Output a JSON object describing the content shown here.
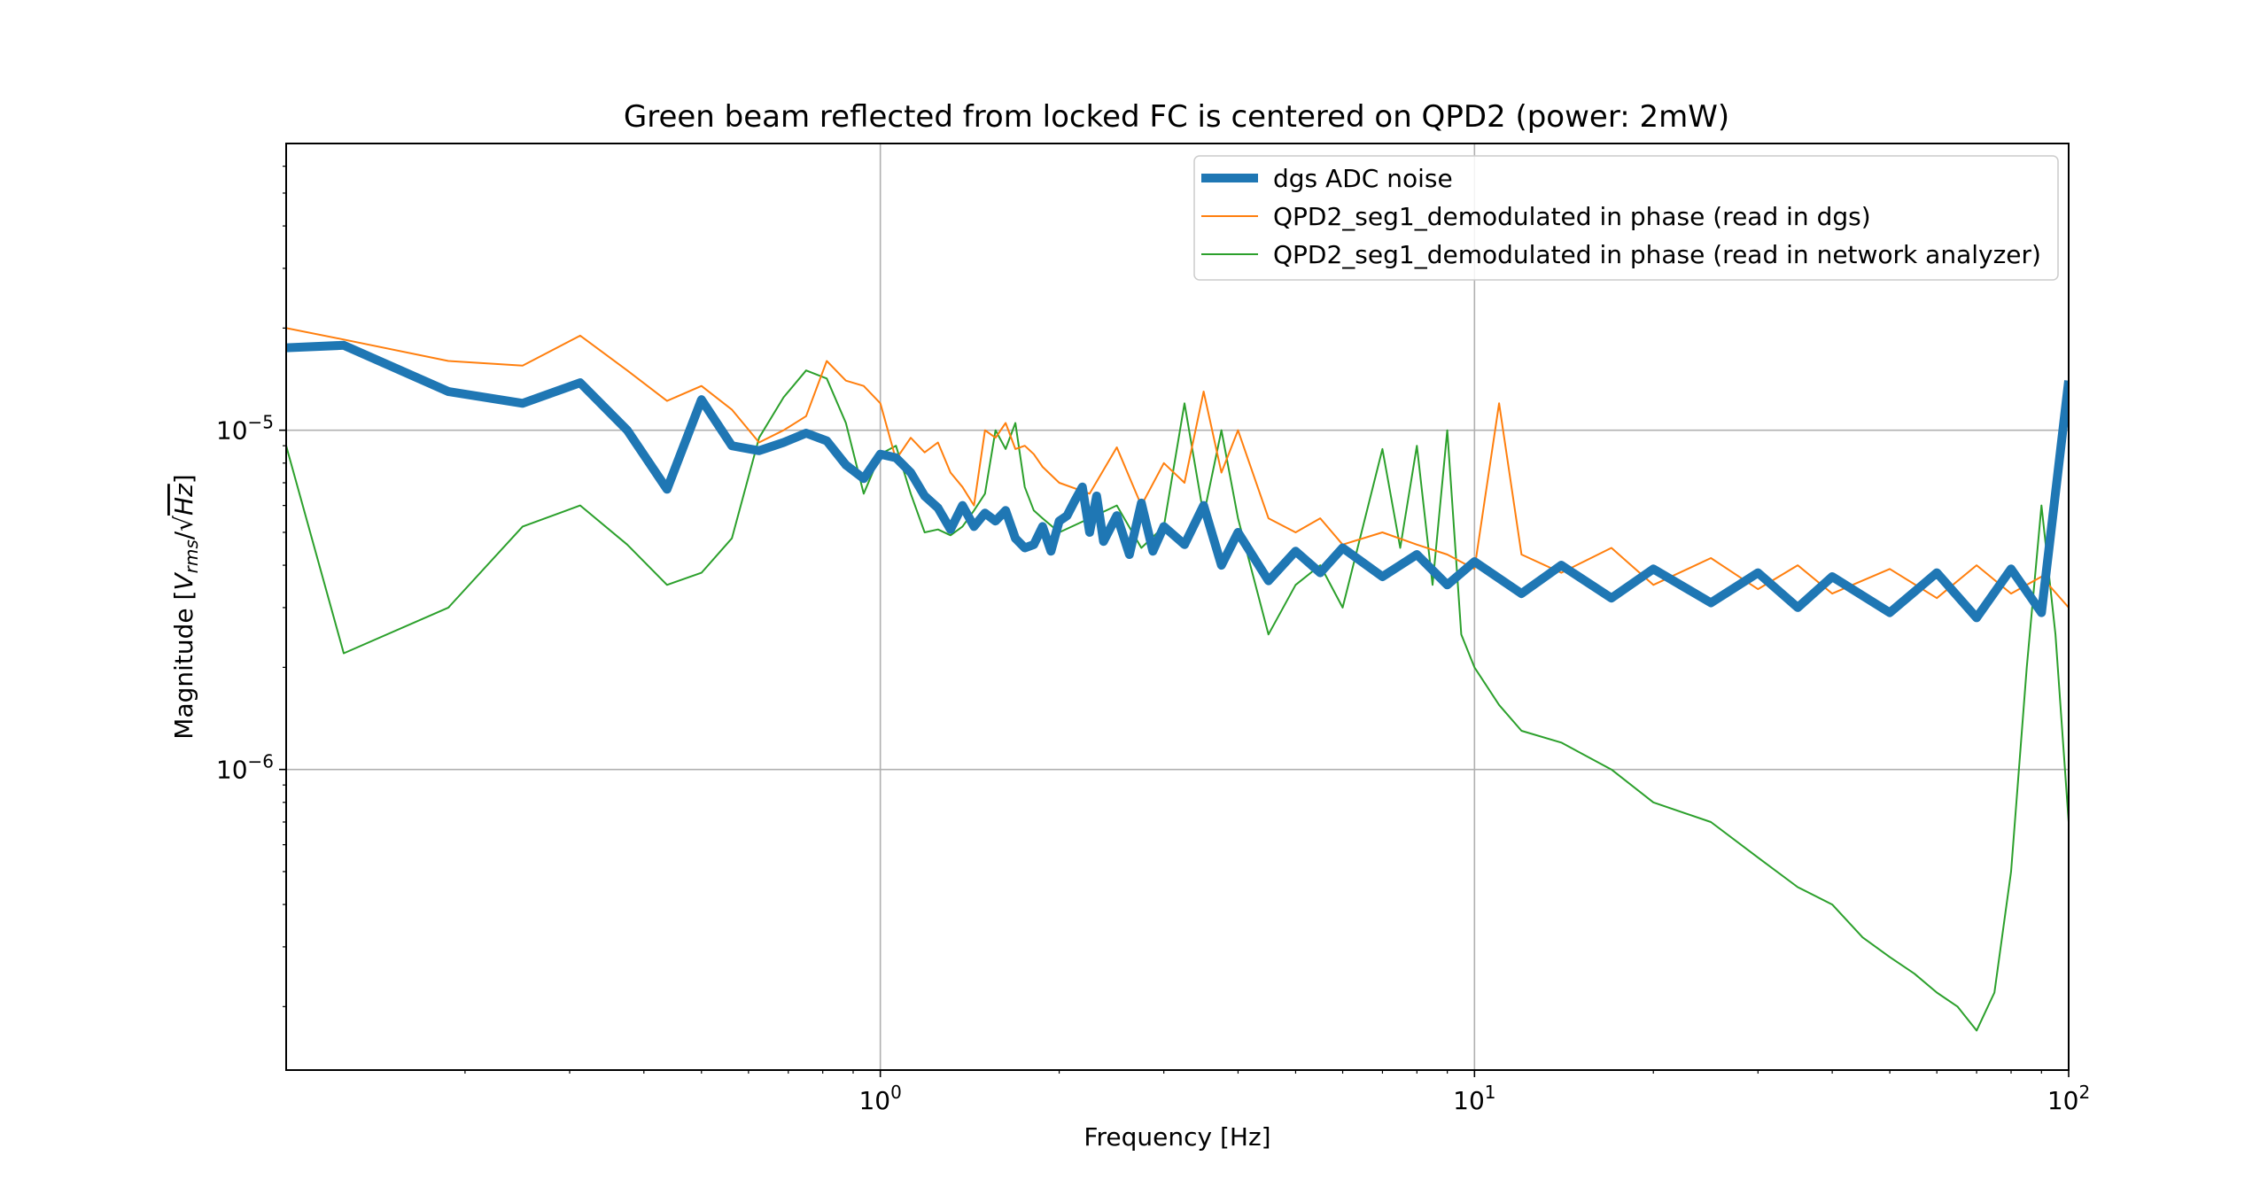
{
  "chart_data": {
    "type": "line",
    "title": "Green beam reflected from locked FC is centered on QPD2 (power: 2mW)",
    "xlabel": "Frequency [Hz]",
    "ylabel": {
      "prefix": "Magnitude [",
      "v": "V",
      "v_sub": "rms",
      "slash": "/",
      "sqrt": "√",
      "hz": "Hz",
      "suffix": "]"
    },
    "xscale": "log",
    "yscale": "log",
    "xlim": [
      0.1,
      100
    ],
    "ylim": [
      1.3e-07,
      7e-05
    ],
    "x_ticks": [
      {
        "value": 1,
        "base": "10",
        "exp": "0"
      },
      {
        "value": 10,
        "base": "10",
        "exp": "1"
      },
      {
        "value": 100,
        "base": "10",
        "exp": "2"
      }
    ],
    "y_ticks": [
      {
        "value": 1e-05,
        "base": "10",
        "exp": "−5"
      },
      {
        "value": 1e-06,
        "base": "10",
        "exp": "−6"
      }
    ],
    "grid": true,
    "legend_position": "upper right",
    "series": [
      {
        "name": "dgs ADC noise",
        "color": "#1f77b4",
        "linewidth": "thick",
        "x": [
          0.1,
          0.125,
          0.1875,
          0.25,
          0.3125,
          0.375,
          0.4375,
          0.5,
          0.5625,
          0.625,
          0.6875,
          0.75,
          0.8125,
          0.875,
          0.9375,
          1.0,
          1.0625,
          1.125,
          1.1875,
          1.25,
          1.3125,
          1.375,
          1.4375,
          1.5,
          1.5625,
          1.625,
          1.6875,
          1.75,
          1.8125,
          1.875,
          1.9375,
          2.0,
          2.0625,
          2.125,
          2.1875,
          2.25,
          2.3125,
          2.375,
          2.5,
          2.625,
          2.75,
          2.875,
          3.0,
          3.25,
          3.5,
          3.75,
          4.0,
          4.5,
          5.0,
          5.5,
          6.0,
          7.0,
          8.0,
          9.0,
          10.0,
          12.0,
          14.0,
          17.0,
          20.0,
          25.0,
          30.0,
          35.0,
          40.0,
          50.0,
          60.0,
          70.0,
          80.0,
          90.0,
          100.0
        ],
        "y": [
          1.75e-05,
          1.78e-05,
          1.3e-05,
          1.2e-05,
          1.38e-05,
          1e-05,
          6.7e-06,
          1.23e-05,
          9e-06,
          8.7e-06,
          9.2e-06,
          9.8e-06,
          9.3e-06,
          7.9e-06,
          7.2e-06,
          8.5e-06,
          8.3e-06,
          7.5e-06,
          6.4e-06,
          5.9e-06,
          5.1e-06,
          6e-06,
          5.2e-06,
          5.7e-06,
          5.4e-06,
          5.8e-06,
          4.8e-06,
          4.5e-06,
          4.6e-06,
          5.2e-06,
          4.4e-06,
          5.4e-06,
          5.6e-06,
          6.2e-06,
          6.8e-06,
          5e-06,
          6.4e-06,
          4.7e-06,
          5.6e-06,
          4.3e-06,
          6.1e-06,
          4.4e-06,
          5.2e-06,
          4.6e-06,
          6e-06,
          4e-06,
          5e-06,
          3.6e-06,
          4.4e-06,
          3.8e-06,
          4.5e-06,
          3.7e-06,
          4.3e-06,
          3.5e-06,
          4.1e-06,
          3.3e-06,
          4e-06,
          3.2e-06,
          3.9e-06,
          3.1e-06,
          3.8e-06,
          3e-06,
          3.7e-06,
          2.9e-06,
          3.8e-06,
          2.8e-06,
          3.9e-06,
          2.9e-06,
          1.4e-05
        ]
      },
      {
        "name": "QPD2_seg1_demodulated in phase (read in dgs)",
        "color": "#ff7f0e",
        "linewidth": "thin",
        "x": [
          0.1,
          0.125,
          0.1875,
          0.25,
          0.3125,
          0.375,
          0.4375,
          0.5,
          0.5625,
          0.625,
          0.6875,
          0.75,
          0.8125,
          0.875,
          0.9375,
          1.0,
          1.0625,
          1.125,
          1.1875,
          1.25,
          1.3125,
          1.375,
          1.4375,
          1.5,
          1.5625,
          1.625,
          1.6875,
          1.75,
          1.8125,
          1.875,
          2.0,
          2.25,
          2.5,
          2.75,
          3.0,
          3.25,
          3.5,
          3.75,
          4.0,
          4.5,
          5.0,
          5.5,
          6.0,
          7.0,
          8.0,
          9.0,
          10.0,
          11.0,
          12.0,
          14.0,
          17.0,
          20.0,
          25.0,
          30.0,
          35.0,
          40.0,
          50.0,
          60.0,
          70.0,
          80.0,
          90.0,
          100.0
        ],
        "y": [
          2e-05,
          1.85e-05,
          1.6e-05,
          1.55e-05,
          1.9e-05,
          1.5e-05,
          1.22e-05,
          1.35e-05,
          1.15e-05,
          9.2e-06,
          1e-05,
          1.1e-05,
          1.6e-05,
          1.4e-05,
          1.35e-05,
          1.2e-05,
          8.2e-06,
          9.5e-06,
          8.6e-06,
          9.2e-06,
          7.5e-06,
          6.8e-06,
          6e-06,
          1e-05,
          9.5e-06,
          1.05e-05,
          8.8e-06,
          9e-06,
          8.5e-06,
          7.8e-06,
          7e-06,
          6.5e-06,
          8.9e-06,
          6e-06,
          8e-06,
          7e-06,
          1.3e-05,
          7.5e-06,
          1e-05,
          5.5e-06,
          5e-06,
          5.5e-06,
          4.6e-06,
          5e-06,
          4.6e-06,
          4.3e-06,
          3.9e-06,
          1.2e-05,
          4.3e-06,
          3.8e-06,
          4.5e-06,
          3.5e-06,
          4.2e-06,
          3.4e-06,
          4e-06,
          3.3e-06,
          3.9e-06,
          3.2e-06,
          4e-06,
          3.3e-06,
          3.7e-06,
          3e-06
        ]
      },
      {
        "name": "QPD2_seg1_demodulated in phase (read in network analyzer)",
        "color": "#2ca02c",
        "linewidth": "thin",
        "x": [
          0.1,
          0.125,
          0.1875,
          0.25,
          0.3125,
          0.375,
          0.4375,
          0.5,
          0.5625,
          0.625,
          0.6875,
          0.75,
          0.8125,
          0.875,
          0.9375,
          1.0,
          1.0625,
          1.125,
          1.1875,
          1.25,
          1.3125,
          1.375,
          1.4375,
          1.5,
          1.5625,
          1.625,
          1.6875,
          1.75,
          1.8125,
          1.875,
          2.0,
          2.25,
          2.5,
          2.75,
          3.0,
          3.25,
          3.5,
          3.75,
          4.0,
          4.5,
          5.0,
          5.5,
          6.0,
          7.0,
          7.5,
          8.0,
          8.5,
          9.0,
          9.5,
          10.0,
          11.0,
          12.0,
          14.0,
          17.0,
          20.0,
          25.0,
          30.0,
          35.0,
          40.0,
          45.0,
          50.0,
          55.0,
          60.0,
          65.0,
          70.0,
          75.0,
          80.0,
          85.0,
          90.0,
          95.0,
          100.0
        ],
        "y": [
          9e-06,
          2.2e-06,
          3e-06,
          5.2e-06,
          6e-06,
          4.6e-06,
          3.5e-06,
          3.8e-06,
          4.8e-06,
          9.5e-06,
          1.25e-05,
          1.5e-05,
          1.42e-05,
          1.05e-05,
          6.5e-06,
          8.5e-06,
          9e-06,
          6.5e-06,
          5e-06,
          5.1e-06,
          4.9e-06,
          5.2e-06,
          5.8e-06,
          6.5e-06,
          1e-05,
          8.8e-06,
          1.05e-05,
          6.8e-06,
          5.8e-06,
          5.5e-06,
          5e-06,
          5.5e-06,
          6e-06,
          4.5e-06,
          5.2e-06,
          1.2e-05,
          5.6e-06,
          1e-05,
          5.5e-06,
          2.5e-06,
          3.5e-06,
          4e-06,
          3e-06,
          8.8e-06,
          4.5e-06,
          9e-06,
          3.5e-06,
          1e-05,
          2.5e-06,
          2e-06,
          1.55e-06,
          1.3e-06,
          1.2e-06,
          1e-06,
          8e-07,
          7e-07,
          5.5e-07,
          4.5e-07,
          4e-07,
          3.2e-07,
          2.8e-07,
          2.5e-07,
          2.2e-07,
          2e-07,
          1.7e-07,
          2.2e-07,
          5e-07,
          2e-06,
          6e-06,
          2.5e-06,
          7e-07
        ]
      }
    ]
  }
}
